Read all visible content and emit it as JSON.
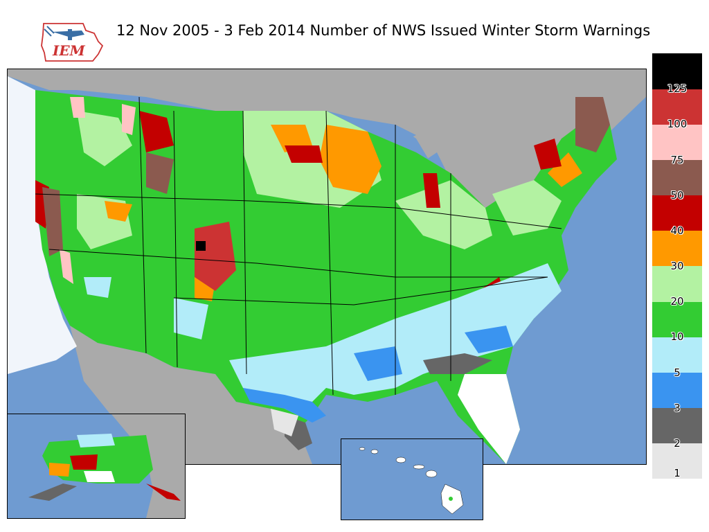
{
  "title": "12 Nov 2005 - 3 Feb 2014 Number of NWS Issued Winter Storm Warnings",
  "logo": {
    "text": "IEM",
    "icon": "iem-airplane-logo-icon"
  },
  "legend": {
    "bins": [
      {
        "label": "1",
        "color": "#e6e6e6"
      },
      {
        "label": "2",
        "color": "#666666"
      },
      {
        "label": "3",
        "color": "#3a94f0"
      },
      {
        "label": "5",
        "color": "#b2ecf9"
      },
      {
        "label": "10",
        "color": "#33cc33"
      },
      {
        "label": "20",
        "color": "#b3f2a2"
      },
      {
        "label": "30",
        "color": "#ff9900"
      },
      {
        "label": "40",
        "color": "#c30000"
      },
      {
        "label": "50",
        "color": "#8b5a4f"
      },
      {
        "label": "75",
        "color": "#ffc4c4"
      },
      {
        "label": "100",
        "color": "#cc3333"
      },
      {
        "label": "125",
        "color": "#000000"
      }
    ]
  },
  "colors": {
    "water": "#6f9bd1",
    "land_outside": "#aaaaaa",
    "no_data": "#ffffff"
  }
}
